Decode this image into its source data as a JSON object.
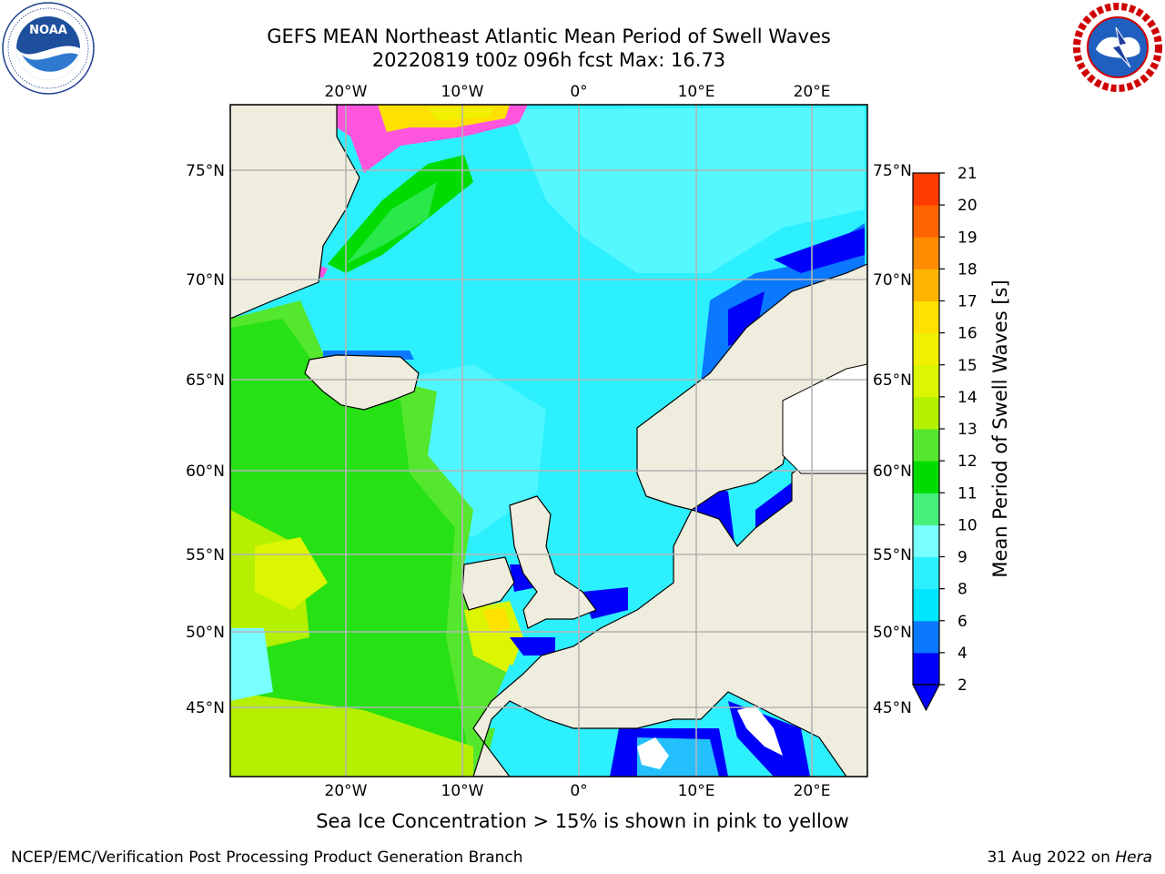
{
  "title": {
    "line1": "GEFS MEAN Northeast Atlantic Mean Period of Swell Waves",
    "line2": "20220819 t00z 096h fcst   Max: 16.73"
  },
  "map": {
    "lon_labels": [
      "20°W",
      "10°W",
      "0°",
      "10°E",
      "20°E"
    ],
    "lat_labels": [
      "75°N",
      "70°N",
      "65°N",
      "60°N",
      "55°N",
      "50°N",
      "45°N"
    ],
    "colors": {
      "land": "#efedde",
      "grid": "#b4b4b4"
    }
  },
  "colorbar": {
    "label": "Mean Period of Swell Waves [s]",
    "ticks": [
      "2",
      "4",
      "6",
      "8",
      "9",
      "10",
      "11",
      "12",
      "13",
      "14",
      "15",
      "16",
      "17",
      "18",
      "19",
      "20",
      "21"
    ],
    "colors": [
      "#0000fa",
      "#0a78ff",
      "#00e6ff",
      "#2df0ff",
      "#78ffff",
      "#44f07a",
      "#00dc00",
      "#55e62e",
      "#b4f000",
      "#dcf500",
      "#f0f000",
      "#ffe100",
      "#ffb400",
      "#ff8c00",
      "#ff6400",
      "#ff3c00",
      "#ff0000"
    ]
  },
  "note": "Sea Ice Concentration > 15% is shown in pink to yellow",
  "footer": {
    "left": "NCEP/EMC/Verification Post Processing Product Generation Branch",
    "date": "31 Aug 2022 on",
    "host": "Hera"
  }
}
